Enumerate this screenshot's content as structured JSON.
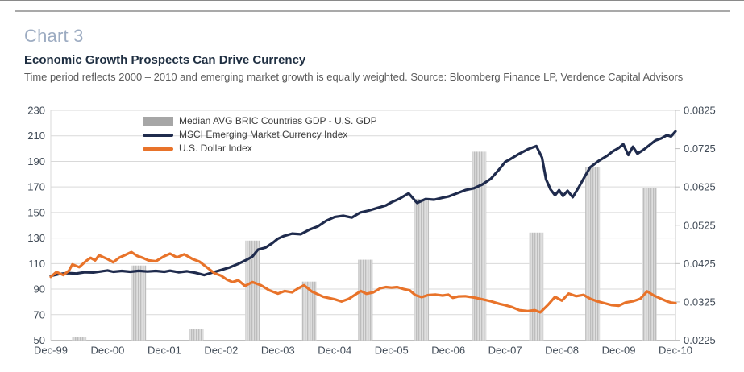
{
  "page": {
    "title_label": "Chart 3",
    "heading": "Economic Growth Prospects Can Drive Currency",
    "subtitle": "Time period reflects 2000 – 2010 and emerging market growth is equally weighted. Source: Bloomberg Finance LP, Verdence Capital Advisors"
  },
  "chart_data": {
    "type": "bar+line combo",
    "grid": "horizontal gridlines on",
    "legend_position": "top-left inside plot",
    "x_axis": {
      "labels": [
        "Dec-99",
        "Dec-00",
        "Dec-01",
        "Dec-02",
        "Dec-03",
        "Dec-04",
        "Dec-05",
        "Dec-06",
        "Dec-07",
        "Dec-08",
        "Dec-09",
        "Dec-10"
      ],
      "range_years": [
        0,
        11
      ]
    },
    "left_axis": {
      "min": 50,
      "max": 230,
      "step": 20,
      "ticks": [
        230,
        210,
        190,
        170,
        150,
        130,
        110,
        90,
        70,
        50
      ]
    },
    "right_axis": {
      "min": 0.0225,
      "max": 0.0825,
      "step": 0.01,
      "ticks": [
        "0.0825",
        "0.0725",
        "0.0625",
        "0.0525",
        "0.0425",
        "0.0325",
        "0.0225"
      ]
    },
    "bars": {
      "name": "Median AVG BRIC Countries GDP - U.S. GDP",
      "axis": "right",
      "color": "#c4c4c4",
      "x_years": [
        0.5,
        1.55,
        2.56,
        3.55,
        4.55,
        5.54,
        6.53,
        7.54,
        8.55,
        9.54,
        10.54
      ],
      "values": [
        0.0233,
        0.042,
        0.0255,
        0.0485,
        0.0378,
        0.0435,
        0.0594,
        0.0717,
        0.0506,
        0.0677,
        0.0622
      ]
    },
    "series": [
      {
        "name": "MSCI Emerging Market Currency Index",
        "axis": "left",
        "color": "#1f2b4d",
        "x_years": [
          0,
          0.15,
          0.3,
          0.45,
          0.6,
          0.75,
          0.9,
          1,
          1.1,
          1.25,
          1.4,
          1.55,
          1.7,
          1.85,
          2,
          2.1,
          2.25,
          2.4,
          2.55,
          2.7,
          2.85,
          3,
          3.15,
          3.3,
          3.45,
          3.55,
          3.65,
          3.78,
          3.9,
          4,
          4.1,
          4.25,
          4.4,
          4.55,
          4.7,
          4.85,
          5,
          5.15,
          5.3,
          5.45,
          5.6,
          5.75,
          5.9,
          6,
          6.15,
          6.3,
          6.45,
          6.6,
          6.75,
          6.9,
          7,
          7.15,
          7.3,
          7.45,
          7.6,
          7.75,
          7.9,
          8,
          8.1,
          8.25,
          8.4,
          8.55,
          8.65,
          8.72,
          8.8,
          8.88,
          8.95,
          9.02,
          9.1,
          9.19,
          9.3,
          9.4,
          9.5,
          9.65,
          9.8,
          9.9,
          10,
          10.08,
          10.17,
          10.25,
          10.33,
          10.45,
          10.55,
          10.65,
          10.75,
          10.85,
          10.92,
          11
        ],
        "values": [
          100.3,
          101.8,
          102.6,
          102.2,
          103.2,
          103,
          104,
          104.6,
          103.6,
          104.2,
          103.6,
          104.3,
          103.8,
          104.2,
          103.6,
          104.4,
          103.2,
          104,
          102.8,
          101,
          103,
          105,
          107,
          109.8,
          113,
          115.5,
          121,
          122.5,
          126,
          129.5,
          131.5,
          133.5,
          133,
          136.5,
          139,
          143.5,
          146.5,
          147.5,
          146,
          150,
          151.5,
          153.5,
          155.5,
          158,
          161,
          165,
          157.5,
          160.5,
          160,
          161.5,
          162.5,
          165,
          167.5,
          169,
          172,
          176.5,
          184,
          189.5,
          192,
          196,
          199.5,
          202,
          193,
          176,
          168,
          163.5,
          167.5,
          163,
          167,
          162,
          170,
          178,
          185.5,
          190.5,
          194.5,
          198,
          200.5,
          203.5,
          195,
          201.5,
          196,
          199.5,
          203,
          206.5,
          208,
          210.5,
          209.5,
          213.5
        ]
      },
      {
        "name": "U.S. Dollar Index",
        "axis": "left",
        "color": "#e8732a",
        "x_years": [
          0,
          0.1,
          0.22,
          0.32,
          0.38,
          0.5,
          0.62,
          0.7,
          0.78,
          0.85,
          1,
          1.1,
          1.2,
          1.3,
          1.42,
          1.52,
          1.62,
          1.72,
          1.85,
          1.93,
          2,
          2.1,
          2.22,
          2.35,
          2.5,
          2.62,
          2.75,
          2.88,
          3,
          3.1,
          3.2,
          3.3,
          3.42,
          3.55,
          3.7,
          3.85,
          4,
          4.12,
          4.25,
          4.35,
          4.46,
          4.6,
          4.8,
          5,
          5.12,
          5.25,
          5.36,
          5.46,
          5.56,
          5.68,
          5.8,
          5.9,
          6,
          6.1,
          6.22,
          6.32,
          6.42,
          6.53,
          6.64,
          6.78,
          6.9,
          7,
          7.08,
          7.18,
          7.3,
          7.45,
          7.6,
          7.75,
          7.9,
          8,
          8.12,
          8.25,
          8.4,
          8.52,
          8.62,
          8.75,
          8.88,
          9,
          9.12,
          9.25,
          9.38,
          9.5,
          9.62,
          9.75,
          9.88,
          10,
          10.12,
          10.25,
          10.38,
          10.5,
          10.62,
          10.72,
          10.85,
          10.92,
          11
        ],
        "values": [
          99.6,
          103.4,
          101,
          104.5,
          109.3,
          107.2,
          112,
          114.5,
          112.5,
          116.5,
          113.5,
          111,
          114.5,
          116.5,
          119,
          116,
          114.5,
          112.5,
          111.8,
          114,
          115.8,
          117.8,
          114.8,
          117.3,
          113.5,
          111.5,
          107,
          102.5,
          100.5,
          97.5,
          95.5,
          97,
          92.5,
          95.5,
          93,
          89,
          86.5,
          88.5,
          87.5,
          90.5,
          93,
          88,
          84,
          82,
          80.3,
          82.5,
          85.7,
          88.5,
          86.4,
          87.5,
          90.6,
          91.6,
          91.2,
          91.6,
          90,
          89,
          85.3,
          83.7,
          85.3,
          85.7,
          85,
          85.7,
          83.2,
          84.3,
          84.5,
          83.5,
          82,
          80.5,
          78.5,
          77.5,
          76,
          73.5,
          72.8,
          73.5,
          71.8,
          77.5,
          84,
          81,
          86.5,
          84.5,
          85.5,
          82.5,
          80.5,
          79,
          77.5,
          77,
          79.5,
          80.5,
          82.5,
          88.3,
          85,
          83,
          80.5,
          79.5,
          79
        ]
      }
    ]
  }
}
